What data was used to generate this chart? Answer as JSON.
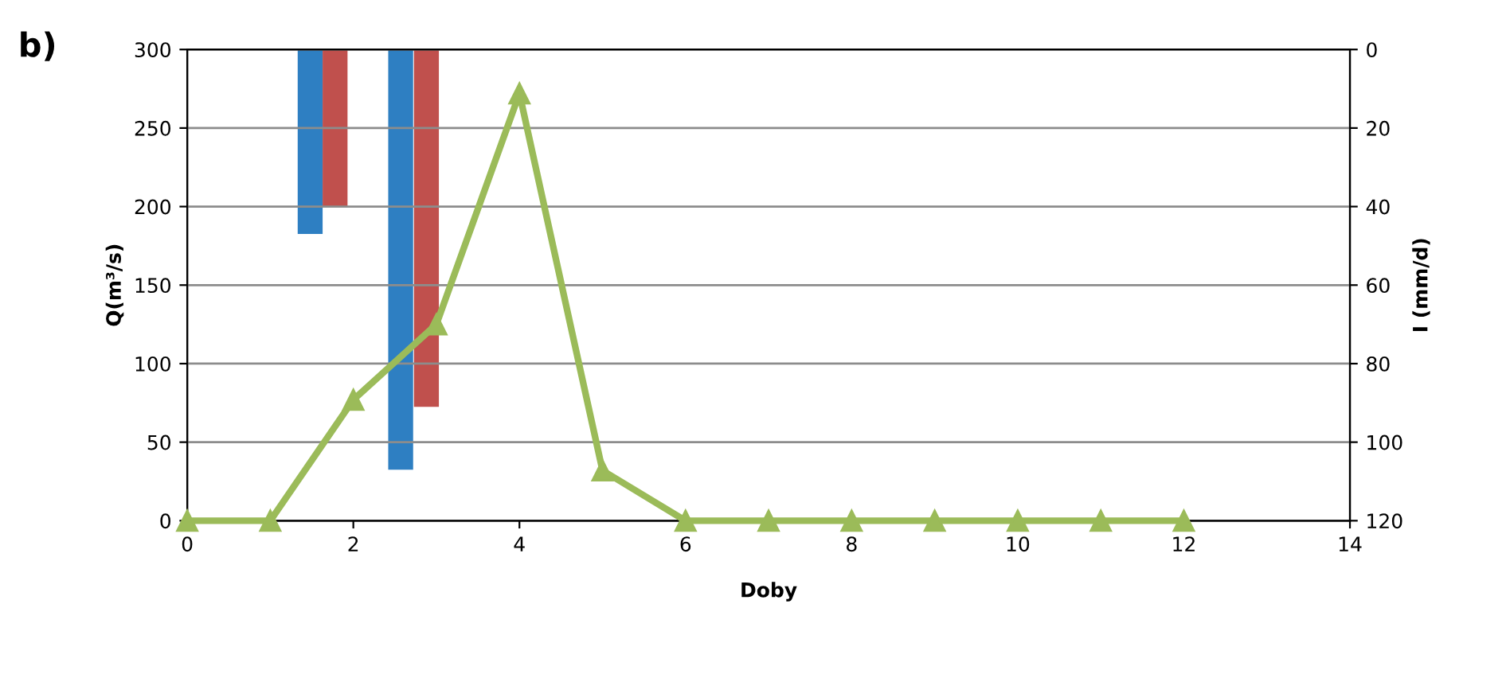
{
  "chart_data": {
    "type": "line",
    "xlabel": "Doby",
    "ylabel": "Q(m³/s)",
    "y2label": "I (mm/d)",
    "annotations": [
      "b)"
    ],
    "xlim": [
      0,
      14
    ],
    "xticks": [
      0,
      2,
      4,
      6,
      8,
      10,
      12,
      14
    ],
    "ylim": [
      0,
      300
    ],
    "yticks": [
      0,
      50,
      100,
      150,
      200,
      250,
      300
    ],
    "y2lim": [
      120,
      0
    ],
    "y2ticks": [
      0,
      20,
      40,
      60,
      80,
      100,
      120
    ],
    "grid": "y",
    "series": [
      {
        "type": "bar",
        "axis": "y2",
        "color": "#2e7fc2",
        "x": [
          1.48,
          2.57
        ],
        "values": [
          47,
          107
        ]
      },
      {
        "type": "bar",
        "axis": "y2",
        "color": "#c0504d",
        "x": [
          1.78,
          2.88
        ],
        "values": [
          40,
          91
        ]
      },
      {
        "color": "#9bbb59",
        "marker": "triangle",
        "line_style": "solid",
        "x": [
          0,
          1,
          2,
          3,
          4,
          5,
          6,
          7,
          8,
          9,
          10,
          11,
          12
        ],
        "values": [
          0,
          0,
          77,
          125,
          272,
          32,
          0,
          0,
          0,
          0,
          0,
          0,
          0
        ]
      }
    ]
  }
}
